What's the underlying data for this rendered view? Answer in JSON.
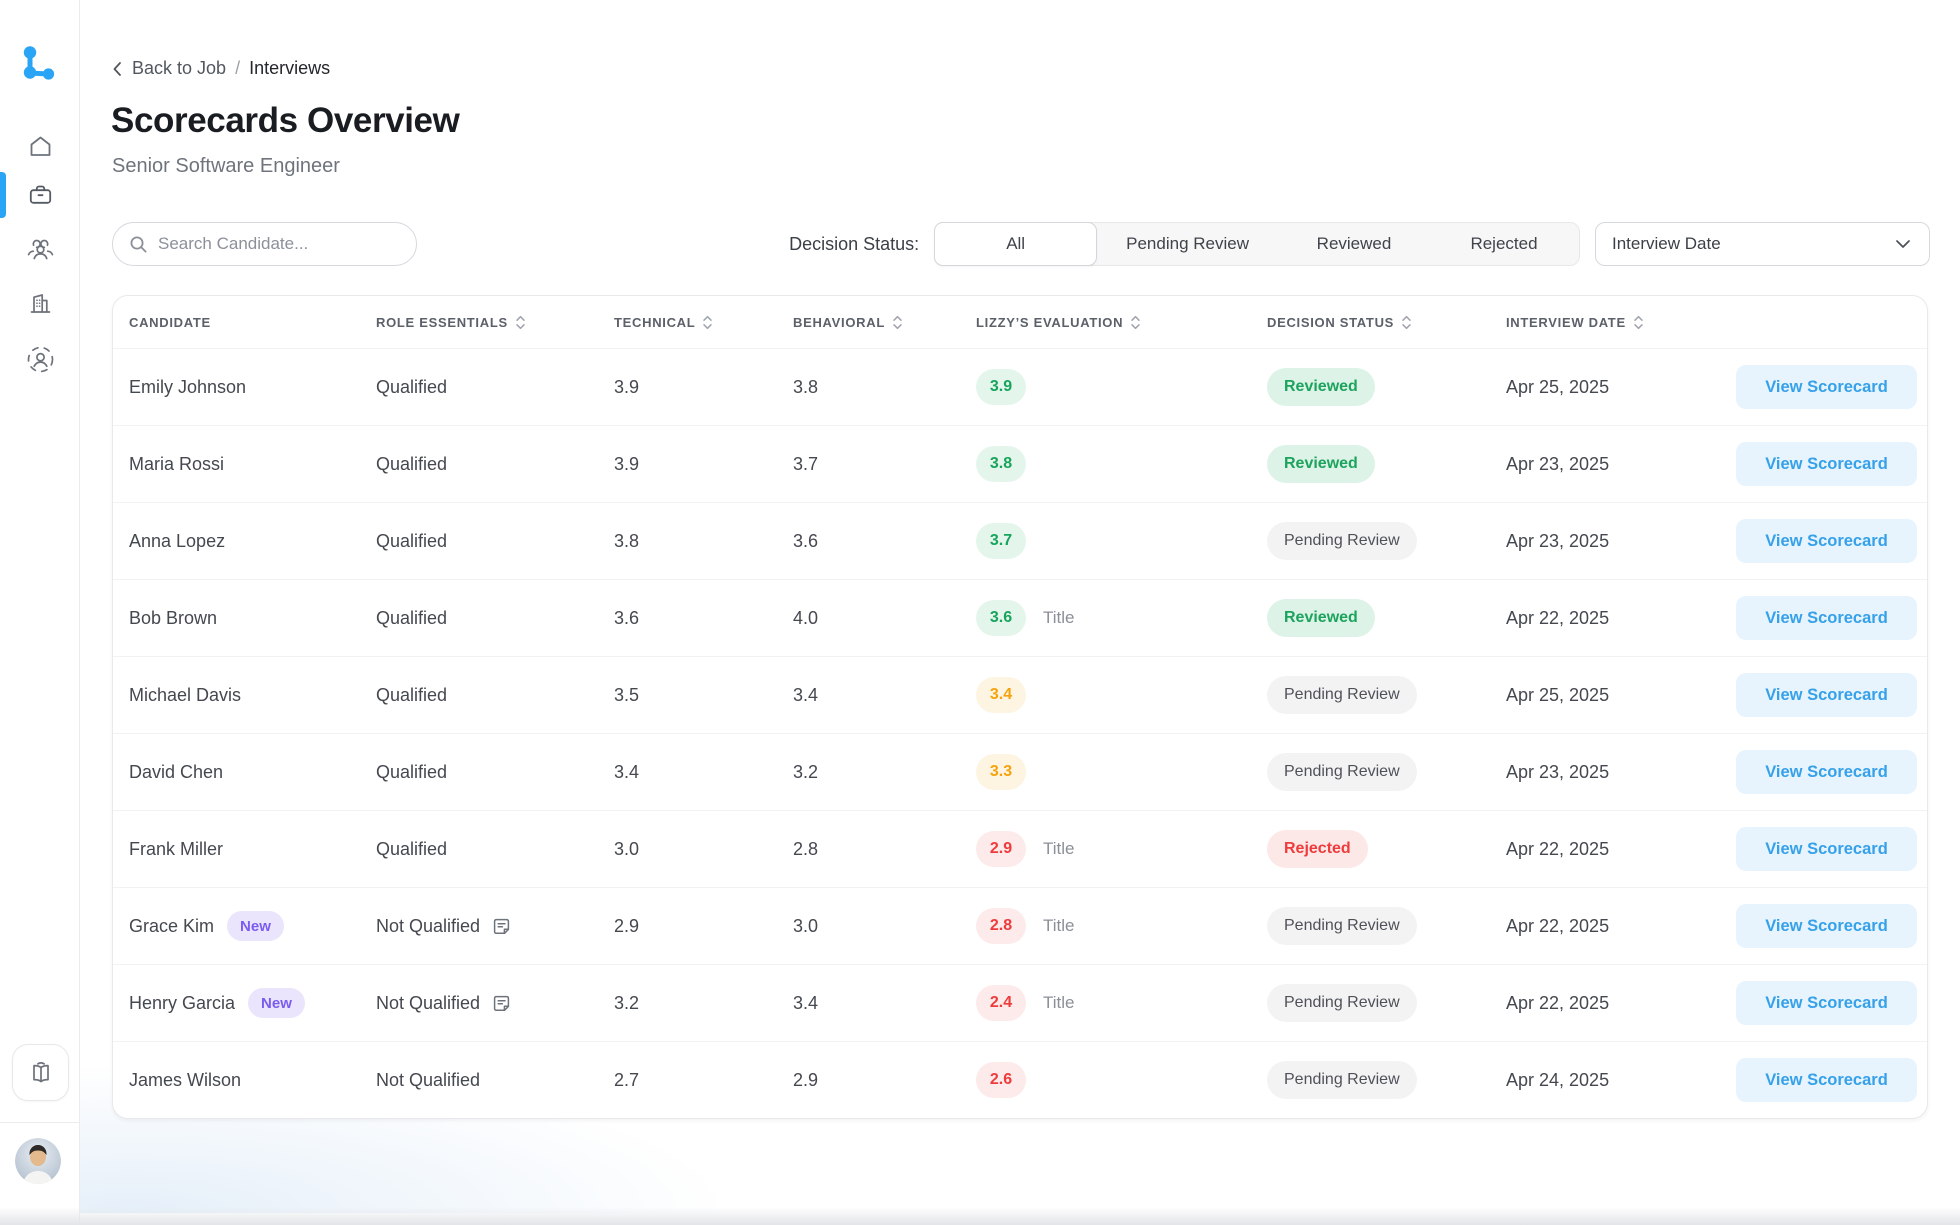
{
  "sidebar": {
    "logo_name": "lizzy-logo",
    "items": [
      {
        "name": "home",
        "active": false
      },
      {
        "name": "jobs",
        "active": true
      },
      {
        "name": "candidates",
        "active": false
      },
      {
        "name": "companies",
        "active": false
      },
      {
        "name": "sourcing",
        "active": false
      }
    ],
    "bottom_button": "library"
  },
  "breadcrumb": {
    "back_label": "Back to Job",
    "separator": "/",
    "current": "Interviews"
  },
  "header": {
    "title": "Scorecards Overview",
    "subtitle": "Senior Software Engineer"
  },
  "filters": {
    "search_placeholder": "Search Candidate...",
    "decision_label": "Decision Status:",
    "segments": [
      {
        "label": "All",
        "active": true
      },
      {
        "label": "Pending Review",
        "active": false
      },
      {
        "label": "Reviewed",
        "active": false
      },
      {
        "label": "Rejected",
        "active": false
      }
    ],
    "date_filter_label": "Interview Date"
  },
  "table": {
    "columns": [
      {
        "label": "CANDIDATE",
        "sortable": false
      },
      {
        "label": "ROLE ESSENTIALS",
        "sortable": true
      },
      {
        "label": "TECHNICAL",
        "sortable": true
      },
      {
        "label": "BEHAVIORAL",
        "sortable": true
      },
      {
        "label": "LIZZY’S EVALUATION",
        "sortable": true
      },
      {
        "label": "DECISION STATUS",
        "sortable": true
      },
      {
        "label": "INTERVIEW DATE",
        "sortable": true
      },
      {
        "label": "",
        "sortable": false
      }
    ],
    "new_badge_label": "New",
    "action_label": "View Scorecard",
    "rows": [
      {
        "name": "Emily Johnson",
        "is_new": false,
        "role": "Qualified",
        "has_note": false,
        "technical": "3.9",
        "behavioral": "3.8",
        "evaluation": "3.9",
        "evaluation_tone": "green",
        "evaluation_note": "",
        "status": "Reviewed",
        "status_tone": "green",
        "date": "Apr 25, 2025"
      },
      {
        "name": "Maria Rossi",
        "is_new": false,
        "role": "Qualified",
        "has_note": false,
        "technical": "3.9",
        "behavioral": "3.7",
        "evaluation": "3.8",
        "evaluation_tone": "green",
        "evaluation_note": "",
        "status": "Reviewed",
        "status_tone": "green",
        "date": "Apr 23, 2025"
      },
      {
        "name": "Anna Lopez",
        "is_new": false,
        "role": "Qualified",
        "has_note": false,
        "technical": "3.8",
        "behavioral": "3.6",
        "evaluation": "3.7",
        "evaluation_tone": "green",
        "evaluation_note": "",
        "status": "Pending Review",
        "status_tone": "gray",
        "date": "Apr 23, 2025"
      },
      {
        "name": "Bob Brown",
        "is_new": false,
        "role": "Qualified",
        "has_note": false,
        "technical": "3.6",
        "behavioral": "4.0",
        "evaluation": "3.6",
        "evaluation_tone": "green",
        "evaluation_note": "Title",
        "status": "Reviewed",
        "status_tone": "green",
        "date": "Apr 22, 2025"
      },
      {
        "name": "Michael Davis",
        "is_new": false,
        "role": "Qualified",
        "has_note": false,
        "technical": "3.5",
        "behavioral": "3.4",
        "evaluation": "3.4",
        "evaluation_tone": "orange",
        "evaluation_note": "",
        "status": "Pending Review",
        "status_tone": "gray",
        "date": "Apr 25, 2025"
      },
      {
        "name": "David Chen",
        "is_new": false,
        "role": "Qualified",
        "has_note": false,
        "technical": "3.4",
        "behavioral": "3.2",
        "evaluation": "3.3",
        "evaluation_tone": "orange",
        "evaluation_note": "",
        "status": "Pending Review",
        "status_tone": "gray",
        "date": "Apr 23, 2025"
      },
      {
        "name": "Frank Miller",
        "is_new": false,
        "role": "Qualified",
        "has_note": false,
        "technical": "3.0",
        "behavioral": "2.8",
        "evaluation": "2.9",
        "evaluation_tone": "red",
        "evaluation_note": "Title",
        "status": "Rejected",
        "status_tone": "red",
        "date": "Apr 22, 2025"
      },
      {
        "name": "Grace Kim",
        "is_new": true,
        "role": "Not Qualified",
        "has_note": true,
        "technical": "2.9",
        "behavioral": "3.0",
        "evaluation": "2.8",
        "evaluation_tone": "red",
        "evaluation_note": "Title",
        "status": "Pending Review",
        "status_tone": "gray",
        "date": "Apr 22, 2025"
      },
      {
        "name": "Henry Garcia",
        "is_new": true,
        "role": "Not Qualified",
        "has_note": true,
        "technical": "3.2",
        "behavioral": "3.4",
        "evaluation": "2.4",
        "evaluation_tone": "red",
        "evaluation_note": "Title",
        "status": "Pending Review",
        "status_tone": "gray",
        "date": "Apr 22, 2025"
      },
      {
        "name": "James Wilson",
        "is_new": false,
        "role": "Not Qualified",
        "has_note": false,
        "technical": "2.7",
        "behavioral": "2.9",
        "evaluation": "2.6",
        "evaluation_tone": "red",
        "evaluation_note": "",
        "status": "Pending Review",
        "status_tone": "gray",
        "date": "Apr 24, 2025"
      }
    ]
  },
  "colors": {
    "accent_blue": "#2aa4f4",
    "score_green": "#17a45c",
    "score_green_bg": "#e4f6ec",
    "score_orange": "#f5a30d",
    "score_orange_bg": "#fdf4e2",
    "score_red": "#ee3b3b",
    "score_red_bg": "#fdeaea",
    "status_reviewed": "#1ca35d",
    "status_reviewed_bg": "#ddf3e7",
    "status_pending": "#4e5258",
    "status_pending_bg": "#f3f3f4",
    "status_rejected": "#ef3b3b",
    "status_rejected_bg": "#fde8e8",
    "new_badge": "#7b5cf0",
    "new_badge_bg": "#eae5fc",
    "view_button": "#36a1e9",
    "view_button_bg": "#e7f4fd"
  }
}
